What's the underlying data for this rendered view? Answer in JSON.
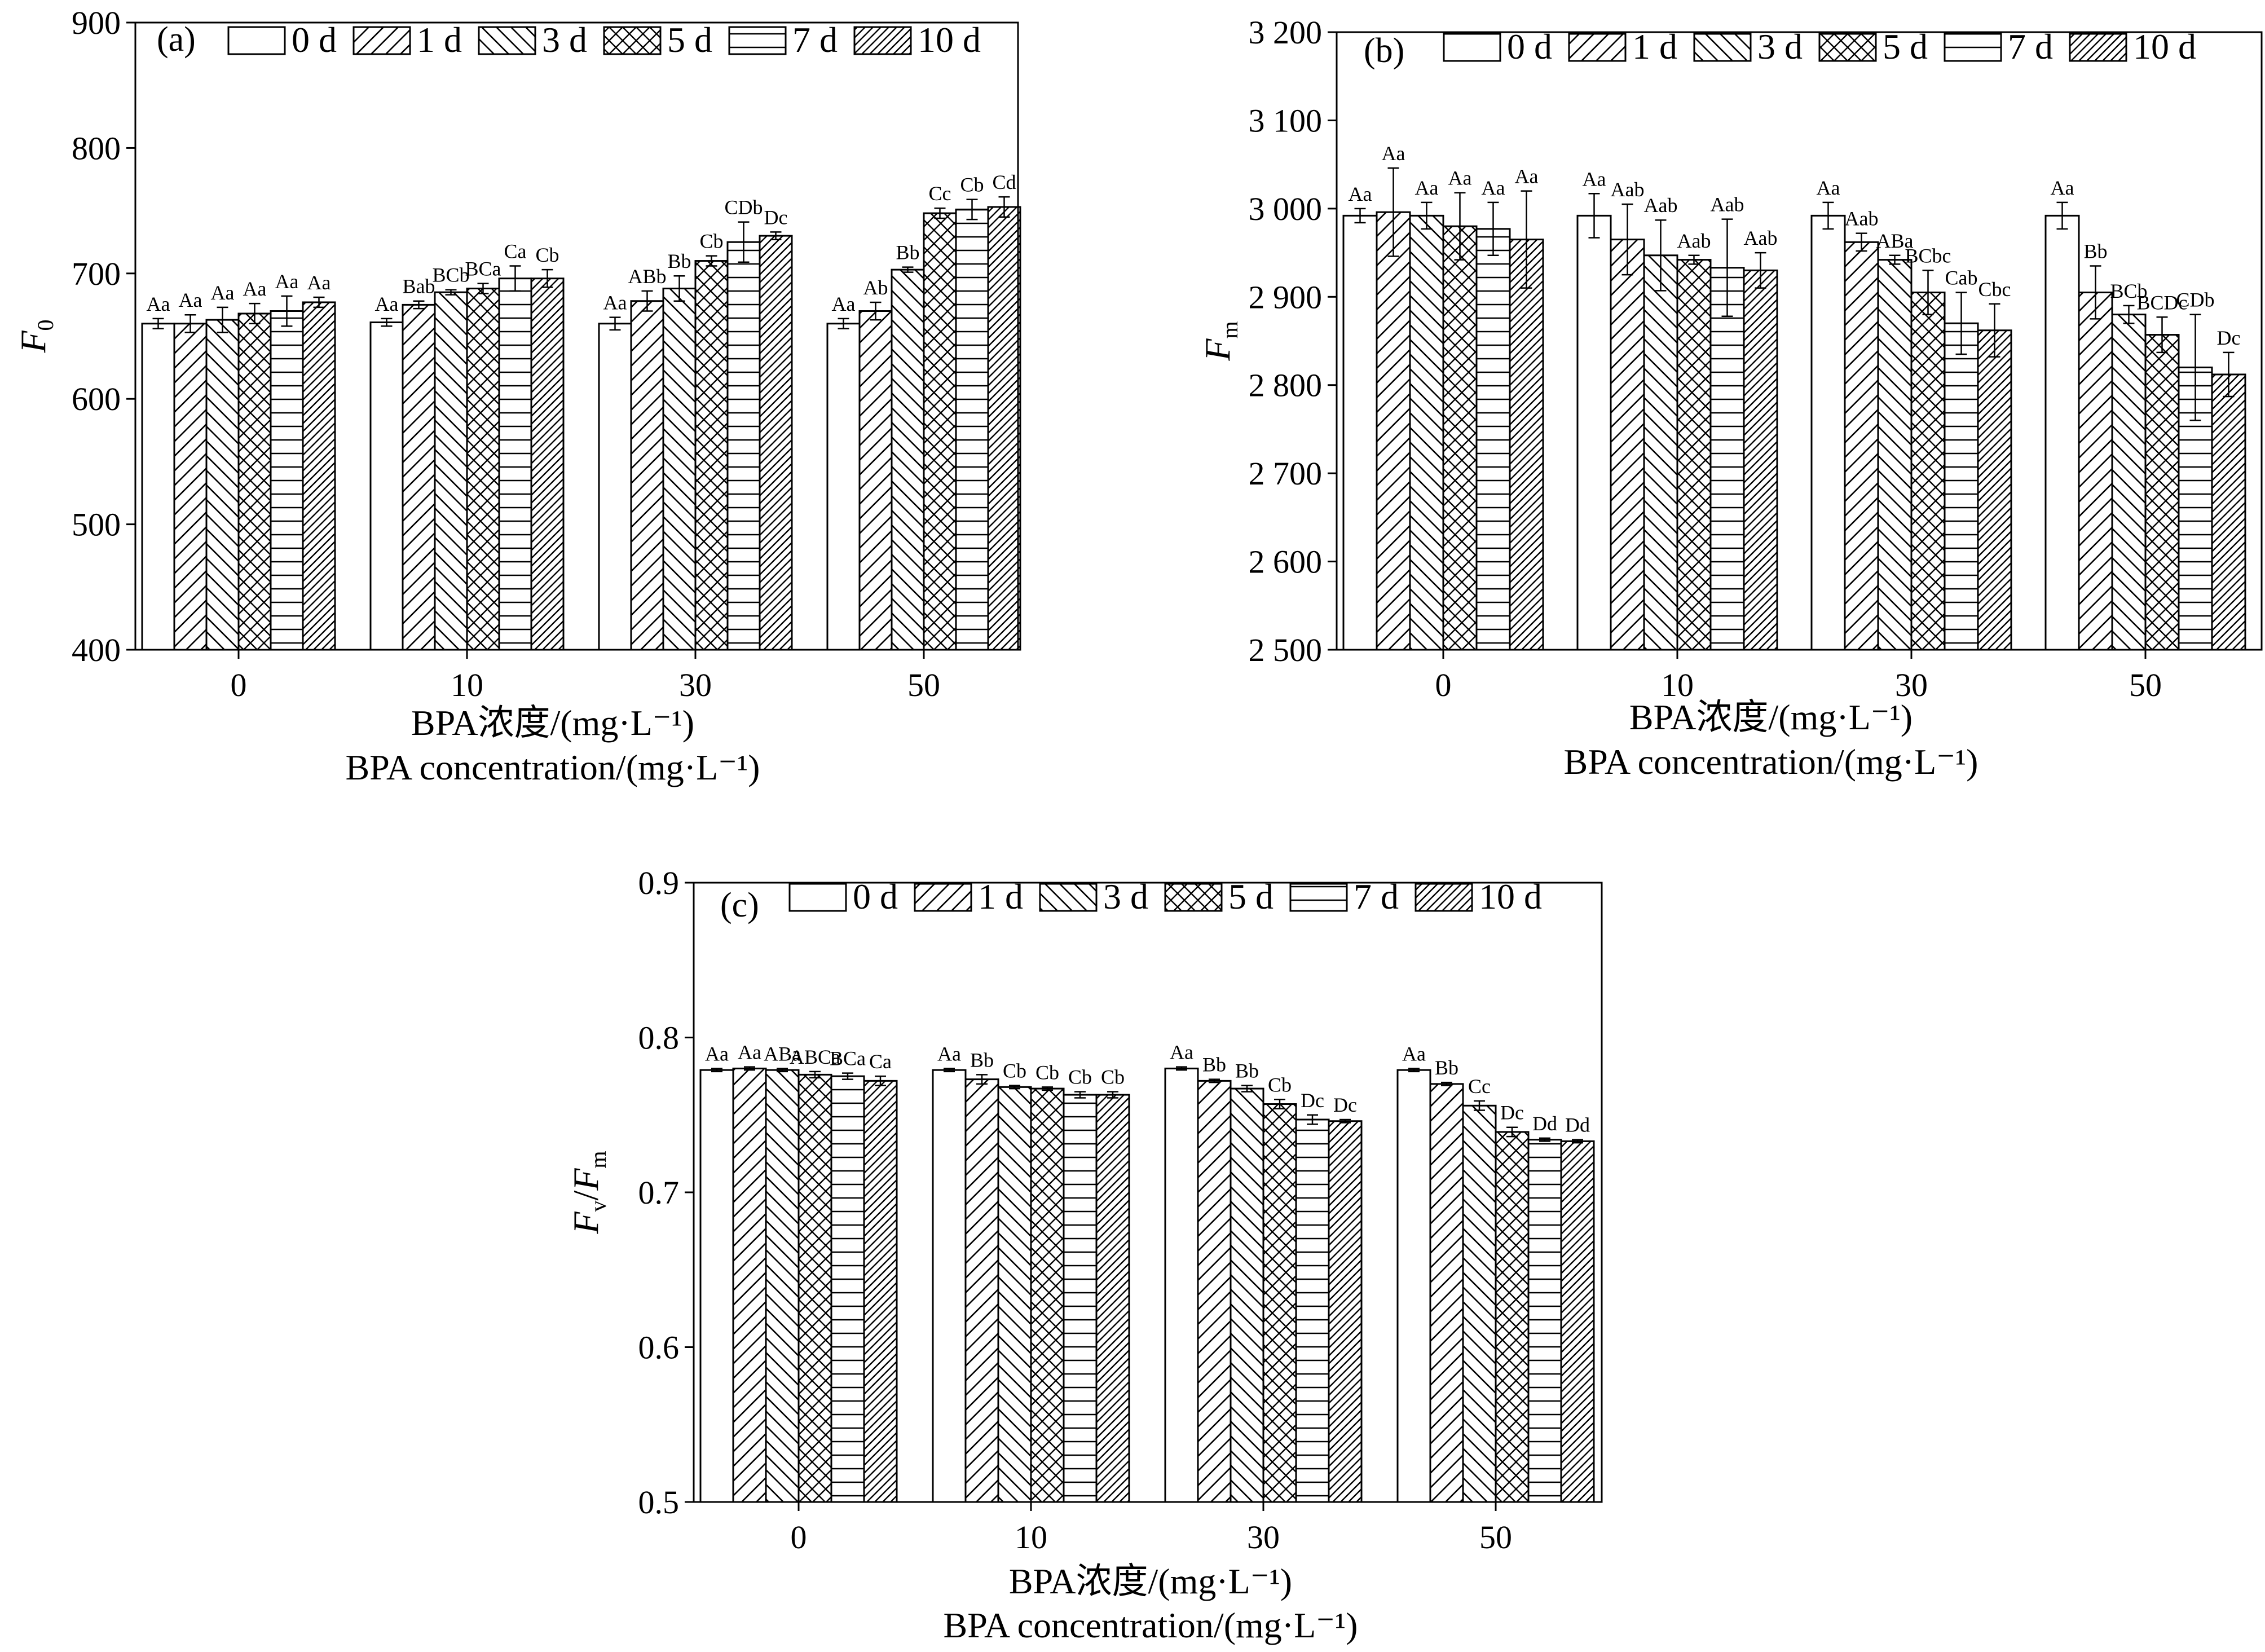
{
  "legend": [
    "0 d",
    "1 d",
    "3 d",
    "5 d",
    "7 d",
    "10 d"
  ],
  "x_caption": {
    "line1": "BPA浓度/(mg·L⁻¹)",
    "line2": "BPA concentration/(mg·L⁻¹)"
  },
  "chart_data": [
    {
      "type": "bar",
      "panel": "(a)",
      "ylabel": {
        "main": "F",
        "sub": "0"
      },
      "categories": [
        "0",
        "10",
        "30",
        "50"
      ],
      "ylim": [
        400,
        900
      ],
      "yticks": [
        "400",
        "500",
        "600",
        "700",
        "800",
        "900"
      ],
      "tick_values": [
        400,
        500,
        600,
        700,
        800,
        900
      ],
      "series": [
        {
          "name": "0 d",
          "values": [
            660,
            661,
            660,
            660
          ],
          "errors": [
            4,
            3,
            5,
            4
          ],
          "labels": [
            "Aa",
            "Aa",
            "Aa",
            "Aa"
          ]
        },
        {
          "name": "1 d",
          "values": [
            660,
            675,
            678,
            670
          ],
          "errors": [
            7,
            3,
            8,
            7
          ],
          "labels": [
            "Aa",
            "Bab",
            "ABb",
            "Ab"
          ]
        },
        {
          "name": "3 d",
          "values": [
            663,
            685,
            688,
            703
          ],
          "errors": [
            10,
            2,
            10,
            2
          ],
          "labels": [
            "Aa",
            "BCb",
            "Bb",
            "Bb"
          ]
        },
        {
          "name": "5 d",
          "values": [
            668,
            688,
            710,
            748
          ],
          "errors": [
            8,
            4,
            4,
            4
          ],
          "labels": [
            "Aa",
            "BCa",
            "Cb",
            "Cc"
          ]
        },
        {
          "name": "7 d",
          "values": [
            670,
            696,
            725,
            751
          ],
          "errors": [
            12,
            10,
            16,
            8
          ],
          "labels": [
            "Aa",
            "Ca",
            "CDb",
            "Cb"
          ]
        },
        {
          "name": "10 d",
          "values": [
            677,
            696,
            730,
            753
          ],
          "errors": [
            4,
            7,
            3,
            8
          ],
          "labels": [
            "Aa",
            "Cb",
            "Dc",
            "Cd"
          ]
        }
      ]
    },
    {
      "type": "bar",
      "panel": "(b)",
      "ylabel": {
        "main": "F",
        "sub": "m"
      },
      "categories": [
        "0",
        "10",
        "30",
        "50"
      ],
      "ylim": [
        2500,
        3200
      ],
      "yticks": [
        "2 500",
        "2 600",
        "2 700",
        "2 800",
        "2 900",
        "3 000",
        "3 100",
        "3 200"
      ],
      "tick_values": [
        2500,
        2600,
        2700,
        2800,
        2900,
        3000,
        3100,
        3200
      ],
      "series": [
        {
          "name": "0 d",
          "values": [
            2992,
            2992,
            2992,
            2992
          ],
          "errors": [
            8,
            25,
            15,
            15
          ],
          "labels": [
            "Aa",
            "Aa",
            "Aa",
            "Aa"
          ]
        },
        {
          "name": "1 d",
          "values": [
            2996,
            2965,
            2962,
            2905
          ],
          "errors": [
            50,
            40,
            10,
            30
          ],
          "labels": [
            "Aa",
            "Aab",
            "Aab",
            "Bb"
          ]
        },
        {
          "name": "3 d",
          "values": [
            2992,
            2947,
            2942,
            2880
          ],
          "errors": [
            15,
            40,
            5,
            10
          ],
          "labels": [
            "Aa",
            "Aab",
            "ABa",
            "BCb"
          ]
        },
        {
          "name": "5 d",
          "values": [
            2980,
            2942,
            2905,
            2857
          ],
          "errors": [
            38,
            5,
            25,
            20
          ],
          "labels": [
            "Aa",
            "Aab",
            "BCbc",
            "BCDc"
          ]
        },
        {
          "name": "7 d",
          "values": [
            2977,
            2933,
            2870,
            2820
          ],
          "errors": [
            30,
            55,
            35,
            60
          ],
          "labels": [
            "Aa",
            "Aab",
            "Cab",
            "CDb"
          ]
        },
        {
          "name": "10 d",
          "values": [
            2965,
            2930,
            2862,
            2812
          ],
          "errors": [
            55,
            20,
            30,
            25
          ],
          "labels": [
            "Aa",
            "Aab",
            "Cbc",
            "Dc"
          ]
        }
      ]
    },
    {
      "type": "bar",
      "panel": "(c)",
      "ylabel": {
        "main": "F",
        "sub": "v",
        "main2": "F",
        "sub2": "m"
      },
      "categories": [
        "0",
        "10",
        "30",
        "50"
      ],
      "ylim": [
        0.5,
        0.9
      ],
      "yticks": [
        "0.5",
        "0.6",
        "0.7",
        "0.8",
        "0.9"
      ],
      "tick_values": [
        0.5,
        0.6,
        0.7,
        0.8,
        0.9
      ],
      "series": [
        {
          "name": "0 d",
          "values": [
            0.779,
            0.779,
            0.78,
            0.779
          ],
          "errors": [
            0.001,
            0.001,
            0.001,
            0.001
          ],
          "labels": [
            "Aa",
            "Aa",
            "Aa",
            "Aa"
          ]
        },
        {
          "name": "1 d",
          "values": [
            0.78,
            0.773,
            0.772,
            0.77
          ],
          "errors": [
            0.001,
            0.003,
            0.001,
            0.001
          ],
          "labels": [
            "Aa",
            "Bb",
            "Bb",
            "Bb"
          ]
        },
        {
          "name": "3 d",
          "values": [
            0.779,
            0.768,
            0.767,
            0.756
          ],
          "errors": [
            0.001,
            0.001,
            0.002,
            0.003
          ],
          "labels": [
            "ABa",
            "Cb",
            "Bb",
            "Cc"
          ]
        },
        {
          "name": "5 d",
          "values": [
            0.776,
            0.767,
            0.757,
            0.739
          ],
          "errors": [
            0.002,
            0.001,
            0.003,
            0.003
          ],
          "labels": [
            "ABCa",
            "Cb",
            "Cb",
            "Dc"
          ]
        },
        {
          "name": "7 d",
          "values": [
            0.775,
            0.763,
            0.747,
            0.734
          ],
          "errors": [
            0.002,
            0.002,
            0.003,
            0.001
          ],
          "labels": [
            "BCa",
            "Cb",
            "Dc",
            "Dd"
          ]
        },
        {
          "name": "10 d",
          "values": [
            0.772,
            0.763,
            0.746,
            0.733
          ],
          "errors": [
            0.003,
            0.002,
            0.001,
            0.001
          ],
          "labels": [
            "Ca",
            "Cb",
            "Dc",
            "Dd"
          ]
        }
      ]
    }
  ]
}
